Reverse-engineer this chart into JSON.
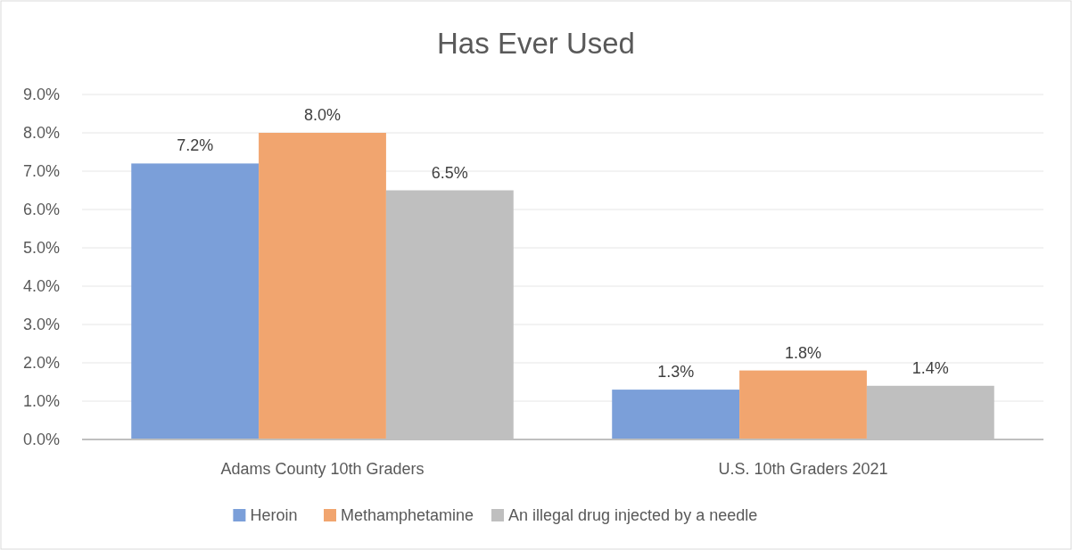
{
  "chart_data": {
    "type": "bar",
    "title": "Has Ever Used",
    "categories": [
      "Adams County 10th Graders",
      "U.S. 10th Graders 2021"
    ],
    "series": [
      {
        "name": "Heroin",
        "color": "#7b9fd9",
        "values": [
          7.2,
          1.3
        ],
        "value_labels": [
          "7.2%",
          "1.3%"
        ]
      },
      {
        "name": "Methamphetamine",
        "color": "#f1a56f",
        "values": [
          8.0,
          1.8
        ],
        "value_labels": [
          "8.0%",
          "1.8%"
        ]
      },
      {
        "name": "An illegal drug injected by a needle",
        "color": "#bfbfbf",
        "values": [
          6.5,
          1.4
        ],
        "value_labels": [
          "6.5%",
          "1.4%"
        ]
      }
    ],
    "ylim": [
      0,
      9
    ],
    "yticks": [
      {
        "value": 0,
        "label": "0.0%"
      },
      {
        "value": 1,
        "label": "1.0%"
      },
      {
        "value": 2,
        "label": "2.0%"
      },
      {
        "value": 3,
        "label": "3.0%"
      },
      {
        "value": 4,
        "label": "4.0%"
      },
      {
        "value": 5,
        "label": "5.0%"
      },
      {
        "value": 6,
        "label": "6.0%"
      },
      {
        "value": 7,
        "label": "7.0%"
      },
      {
        "value": 8,
        "label": "8.0%"
      },
      {
        "value": 9,
        "label": "9.0%"
      }
    ],
    "grid": "y",
    "legend": "bottom"
  }
}
